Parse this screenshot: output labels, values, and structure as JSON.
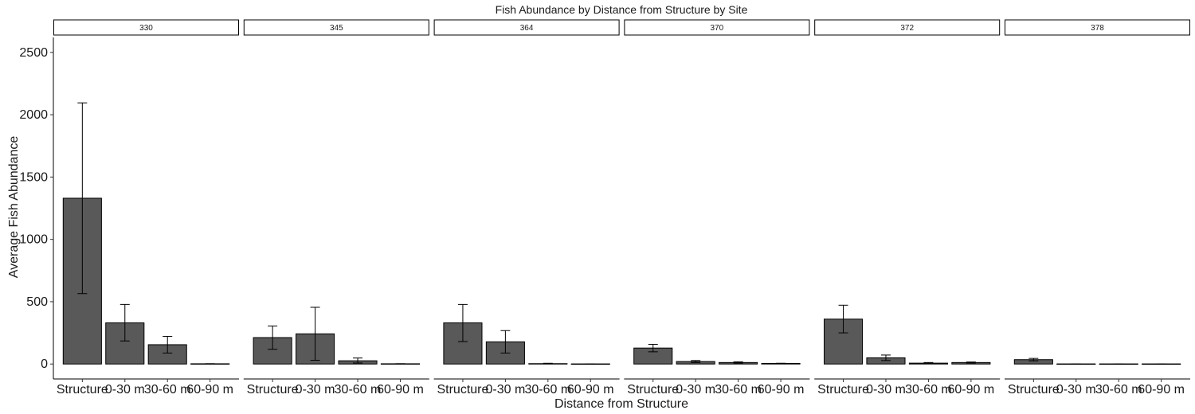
{
  "chart_data": {
    "type": "bar",
    "title": "Fish Abundance by Distance from Structure by Site",
    "xlabel": "Distance from Structure",
    "ylabel": "Average Fish Abundance",
    "categories": [
      "Structure",
      "0-30 m",
      "30-60 m",
      "60-90 m"
    ],
    "ylim": [
      -120,
      2620
    ],
    "yticks": [
      0,
      500,
      1000,
      1500,
      2000,
      2500
    ],
    "grid": false,
    "bar_color": "#595959",
    "facets": [
      {
        "site": "330",
        "values": [
          1330,
          330,
          155,
          2
        ],
        "error_low": [
          565,
          185,
          88,
          2
        ],
        "error_high": [
          2095,
          478,
          222,
          2
        ]
      },
      {
        "site": "345",
        "values": [
          212,
          242,
          26,
          2
        ],
        "error_low": [
          118,
          30,
          8,
          2
        ],
        "error_high": [
          305,
          455,
          48,
          2
        ]
      },
      {
        "site": "364",
        "values": [
          330,
          178,
          3,
          1
        ],
        "error_low": [
          180,
          88,
          1,
          1
        ],
        "error_high": [
          478,
          268,
          6,
          1
        ]
      },
      {
        "site": "370",
        "values": [
          128,
          20,
          12,
          5
        ],
        "error_low": [
          98,
          12,
          7,
          4
        ],
        "error_high": [
          158,
          28,
          17,
          6
        ]
      },
      {
        "site": "372",
        "values": [
          360,
          50,
          7,
          12
        ],
        "error_low": [
          250,
          28,
          3,
          8
        ],
        "error_high": [
          472,
          72,
          12,
          16
        ]
      },
      {
        "site": "378",
        "values": [
          35,
          1,
          1,
          1
        ],
        "error_low": [
          25,
          1,
          1,
          1
        ],
        "error_high": [
          45,
          1,
          1,
          1
        ]
      }
    ]
  }
}
